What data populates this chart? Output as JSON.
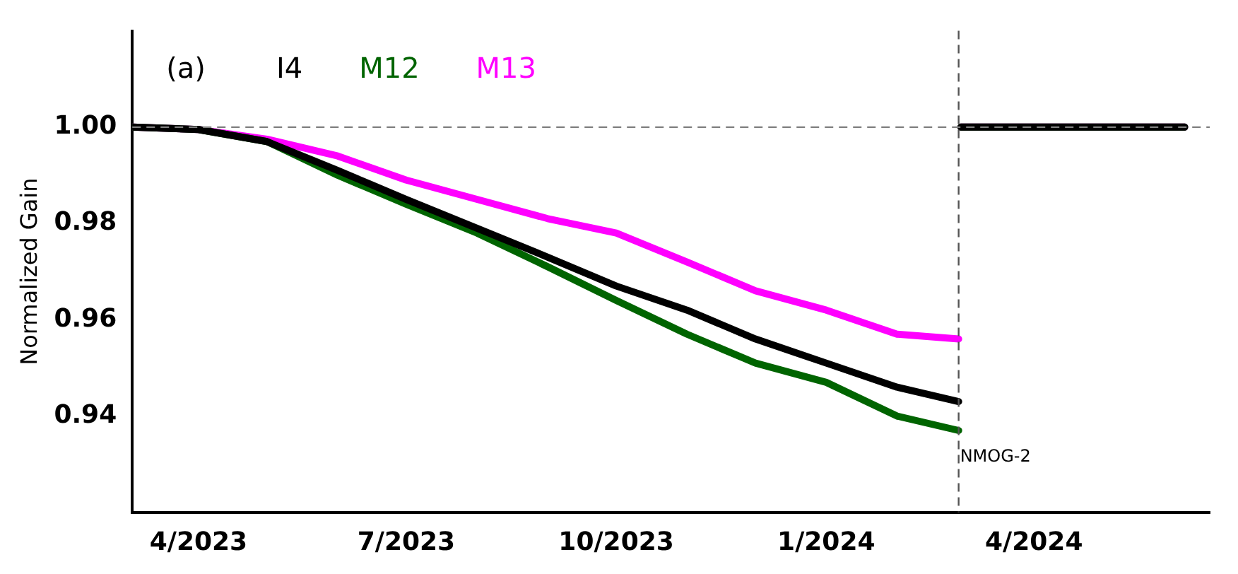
{
  "chart_data": {
    "type": "line",
    "ylabel": "Normalized Gain",
    "annotations": [
      "(a)"
    ],
    "x": [
      "2023-03-03",
      "2023-04-01",
      "2023-05-01",
      "2023-06-01",
      "2023-07-01",
      "2023-08-01",
      "2023-09-01",
      "2023-10-01",
      "2023-11-01",
      "2023-12-01",
      "2024-01-01",
      "2024-02-01",
      "2024-02-28",
      "2024-02-28T12:00",
      "2024-02-29",
      "2024-06-06"
    ],
    "series": [
      {
        "name": "I4",
        "color": "#000000",
        "values": [
          1.0,
          0.9995,
          0.997,
          0.991,
          0.985,
          0.979,
          0.973,
          0.967,
          0.962,
          0.956,
          0.951,
          0.946,
          0.943,
          null,
          1.0,
          1.0
        ]
      },
      {
        "name": "M12",
        "color": "#006400",
        "values": [
          1.0,
          0.9995,
          0.997,
          0.99,
          0.984,
          0.978,
          0.971,
          0.964,
          0.957,
          0.951,
          0.947,
          0.94,
          0.937,
          null,
          1.0,
          1.0
        ]
      },
      {
        "name": "M13",
        "color": "#ff00ff",
        "values": [
          1.0,
          0.9995,
          0.9975,
          0.994,
          0.989,
          0.985,
          0.981,
          0.978,
          0.972,
          0.966,
          0.962,
          0.957,
          0.956,
          null,
          1.0,
          1.0
        ]
      }
    ],
    "xlim": [
      "2023-03-03",
      "2024-06-17"
    ],
    "xticks": [
      {
        "value": "2023-04-01",
        "label": "4/2023"
      },
      {
        "value": "2023-07-01",
        "label": "7/2023"
      },
      {
        "value": "2023-10-01",
        "label": "10/2023"
      },
      {
        "value": "2024-01-01",
        "label": "1/2024"
      },
      {
        "value": "2024-04-01",
        "label": "4/2024"
      }
    ],
    "ylim": [
      0.92,
      1.02
    ],
    "yticks": [
      0.94,
      0.96,
      0.98,
      {
        "value": 1.0,
        "label": "1.00"
      }
    ],
    "ref_lines": [
      {
        "axis": "y",
        "value": 1.0,
        "color": "#808080",
        "line_style": "dashed"
      },
      {
        "axis": "x",
        "value": "2024-02-28",
        "label": "NMOG-2",
        "color": "#555555",
        "line_style": "dashed"
      }
    ],
    "legend": "top left",
    "grid": false
  }
}
